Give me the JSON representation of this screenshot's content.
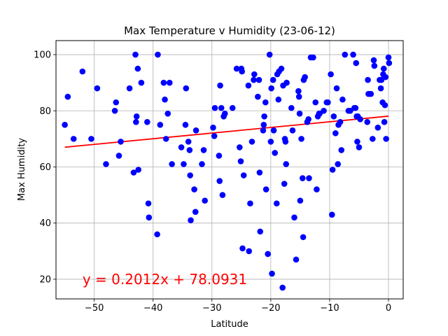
{
  "chart_data": {
    "type": "scatter",
    "title": "Max Temperature v Humidity (23-06-12)",
    "xlabel": "Latitude",
    "ylabel": "Max Humidity",
    "xlim": [
      -56.5,
      2.5
    ],
    "ylim": [
      13,
      105
    ],
    "xticks": [
      -50,
      -40,
      -30,
      -20,
      -10,
      0
    ],
    "yticks": [
      20,
      40,
      60,
      80,
      100
    ],
    "grid": true,
    "point_color": "#0000ff",
    "line_color": "#ff0000",
    "regression": {
      "slope": 0.2012,
      "intercept": 78.0931,
      "x_range": [
        -55,
        0
      ]
    },
    "annotation": {
      "text": "y = 0.2012x + 78.0931",
      "x": -52,
      "y": 20
    },
    "points": [
      [
        -55,
        75
      ],
      [
        -54.5,
        85
      ],
      [
        -53.5,
        70
      ],
      [
        -52,
        94
      ],
      [
        -50.5,
        70
      ],
      [
        -49.5,
        88
      ],
      [
        -48,
        61
      ],
      [
        -46.5,
        80
      ],
      [
        -46.3,
        83
      ],
      [
        -45.8,
        64
      ],
      [
        -45.5,
        69
      ],
      [
        -44,
        88
      ],
      [
        -43.3,
        58
      ],
      [
        -43,
        100
      ],
      [
        -42.9,
        76
      ],
      [
        -42.8,
        78
      ],
      [
        -42.6,
        95
      ],
      [
        -42.5,
        59
      ],
      [
        -42,
        90
      ],
      [
        -41,
        76
      ],
      [
        -40.8,
        47
      ],
      [
        -40.7,
        42
      ],
      [
        -39.3,
        36
      ],
      [
        -39.2,
        100
      ],
      [
        -38.8,
        75
      ],
      [
        -38.2,
        90
      ],
      [
        -38,
        84
      ],
      [
        -37.8,
        70
      ],
      [
        -37.5,
        79
      ],
      [
        -37.2,
        90
      ],
      [
        -36.8,
        61
      ],
      [
        -35.2,
        67
      ],
      [
        -34.8,
        61
      ],
      [
        -34.5,
        75
      ],
      [
        -34.4,
        88
      ],
      [
        -34,
        69
      ],
      [
        -33.8,
        66
      ],
      [
        -33.7,
        57
      ],
      [
        -33.6,
        41
      ],
      [
        -33,
        52
      ],
      [
        -32.8,
        44
      ],
      [
        -32.7,
        73
      ],
      [
        -31.7,
        61
      ],
      [
        -31.4,
        66
      ],
      [
        -31.2,
        48
      ],
      [
        -29.8,
        74
      ],
      [
        -29.6,
        71
      ],
      [
        -29.5,
        81
      ],
      [
        -28.8,
        64
      ],
      [
        -28.7,
        55
      ],
      [
        -28.6,
        89
      ],
      [
        -28.4,
        81
      ],
      [
        -28.2,
        50
      ],
      [
        -28,
        78
      ],
      [
        -27.8,
        79
      ],
      [
        -26.5,
        81
      ],
      [
        -25.8,
        95
      ],
      [
        -25.3,
        67
      ],
      [
        -25.1,
        62
      ],
      [
        -25,
        95
      ],
      [
        -24.9,
        94
      ],
      [
        -24.8,
        31
      ],
      [
        -24.6,
        57
      ],
      [
        -23.8,
        89
      ],
      [
        -23.7,
        30
      ],
      [
        -23.5,
        47
      ],
      [
        -23.2,
        69
      ],
      [
        -22.9,
        91
      ],
      [
        -22.8,
        93
      ],
      [
        -22.2,
        85
      ],
      [
        -22,
        91
      ],
      [
        -21.9,
        58
      ],
      [
        -21.8,
        37
      ],
      [
        -21.3,
        73
      ],
      [
        -21.2,
        75
      ],
      [
        -21.1,
        78
      ],
      [
        -20.9,
        83
      ],
      [
        -20.8,
        52
      ],
      [
        -20.5,
        29
      ],
      [
        -20.2,
        100
      ],
      [
        -20,
        69
      ],
      [
        -19.9,
        88
      ],
      [
        -19.8,
        22
      ],
      [
        -19.6,
        91
      ],
      [
        -19.5,
        73
      ],
      [
        -19.3,
        65
      ],
      [
        -19,
        47
      ],
      [
        -18.9,
        93
      ],
      [
        -18.7,
        84
      ],
      [
        -18.6,
        94
      ],
      [
        -18.2,
        95
      ],
      [
        -18,
        17
      ],
      [
        -17.9,
        89
      ],
      [
        -17.7,
        54
      ],
      [
        -17.6,
        70
      ],
      [
        -17.5,
        69
      ],
      [
        -17.4,
        61
      ],
      [
        -17.3,
        90
      ],
      [
        -16.5,
        81
      ],
      [
        -16.3,
        73
      ],
      [
        -16,
        42
      ],
      [
        -15.7,
        27
      ],
      [
        -15.3,
        87
      ],
      [
        -15.2,
        85
      ],
      [
        -15.1,
        79
      ],
      [
        -15,
        48
      ],
      [
        -14.8,
        70
      ],
      [
        -14.6,
        56
      ],
      [
        -14.5,
        35
      ],
      [
        -14.4,
        91
      ],
      [
        -14.2,
        92
      ],
      [
        -13.8,
        76
      ],
      [
        -13.6,
        77
      ],
      [
        -13.5,
        56
      ],
      [
        -13.2,
        99
      ],
      [
        -12.8,
        99
      ],
      [
        -12.4,
        83
      ],
      [
        -12.2,
        52
      ],
      [
        -12,
        78
      ],
      [
        -11.8,
        79
      ],
      [
        -11.7,
        79
      ],
      [
        -11,
        80
      ],
      [
        -10.5,
        83
      ],
      [
        -10.3,
        83
      ],
      [
        -9.8,
        93
      ],
      [
        -9.6,
        43
      ],
      [
        -9.5,
        59
      ],
      [
        -9.3,
        78
      ],
      [
        -9,
        72
      ],
      [
        -8.8,
        88
      ],
      [
        -8.6,
        61
      ],
      [
        -8.5,
        75
      ],
      [
        -8.2,
        76
      ],
      [
        -8,
        66
      ],
      [
        -7.8,
        84
      ],
      [
        -7.4,
        100
      ],
      [
        -6.8,
        80
      ],
      [
        -6.5,
        80
      ],
      [
        -6,
        100
      ],
      [
        -5.8,
        81
      ],
      [
        -5.6,
        81
      ],
      [
        -5.5,
        97
      ],
      [
        -5.4,
        78
      ],
      [
        -5.3,
        69
      ],
      [
        -5.2,
        78
      ],
      [
        -5,
        67
      ],
      [
        -4.8,
        77
      ],
      [
        -3.6,
        76
      ],
      [
        -3.5,
        91
      ],
      [
        -3.4,
        86
      ],
      [
        -3,
        86
      ],
      [
        -2.7,
        70
      ],
      [
        -2.5,
        98
      ],
      [
        -2.4,
        96
      ],
      [
        -1.8,
        74
      ],
      [
        -1.5,
        91
      ],
      [
        -1.3,
        88
      ],
      [
        -1.2,
        91
      ],
      [
        -1,
        83
      ],
      [
        -0.9,
        93
      ],
      [
        -0.8,
        95
      ],
      [
        -0.7,
        76
      ],
      [
        -0.6,
        82
      ],
      [
        -0.5,
        92
      ],
      [
        -0.4,
        70
      ],
      [
        0,
        99
      ],
      [
        0.1,
        97
      ]
    ]
  }
}
